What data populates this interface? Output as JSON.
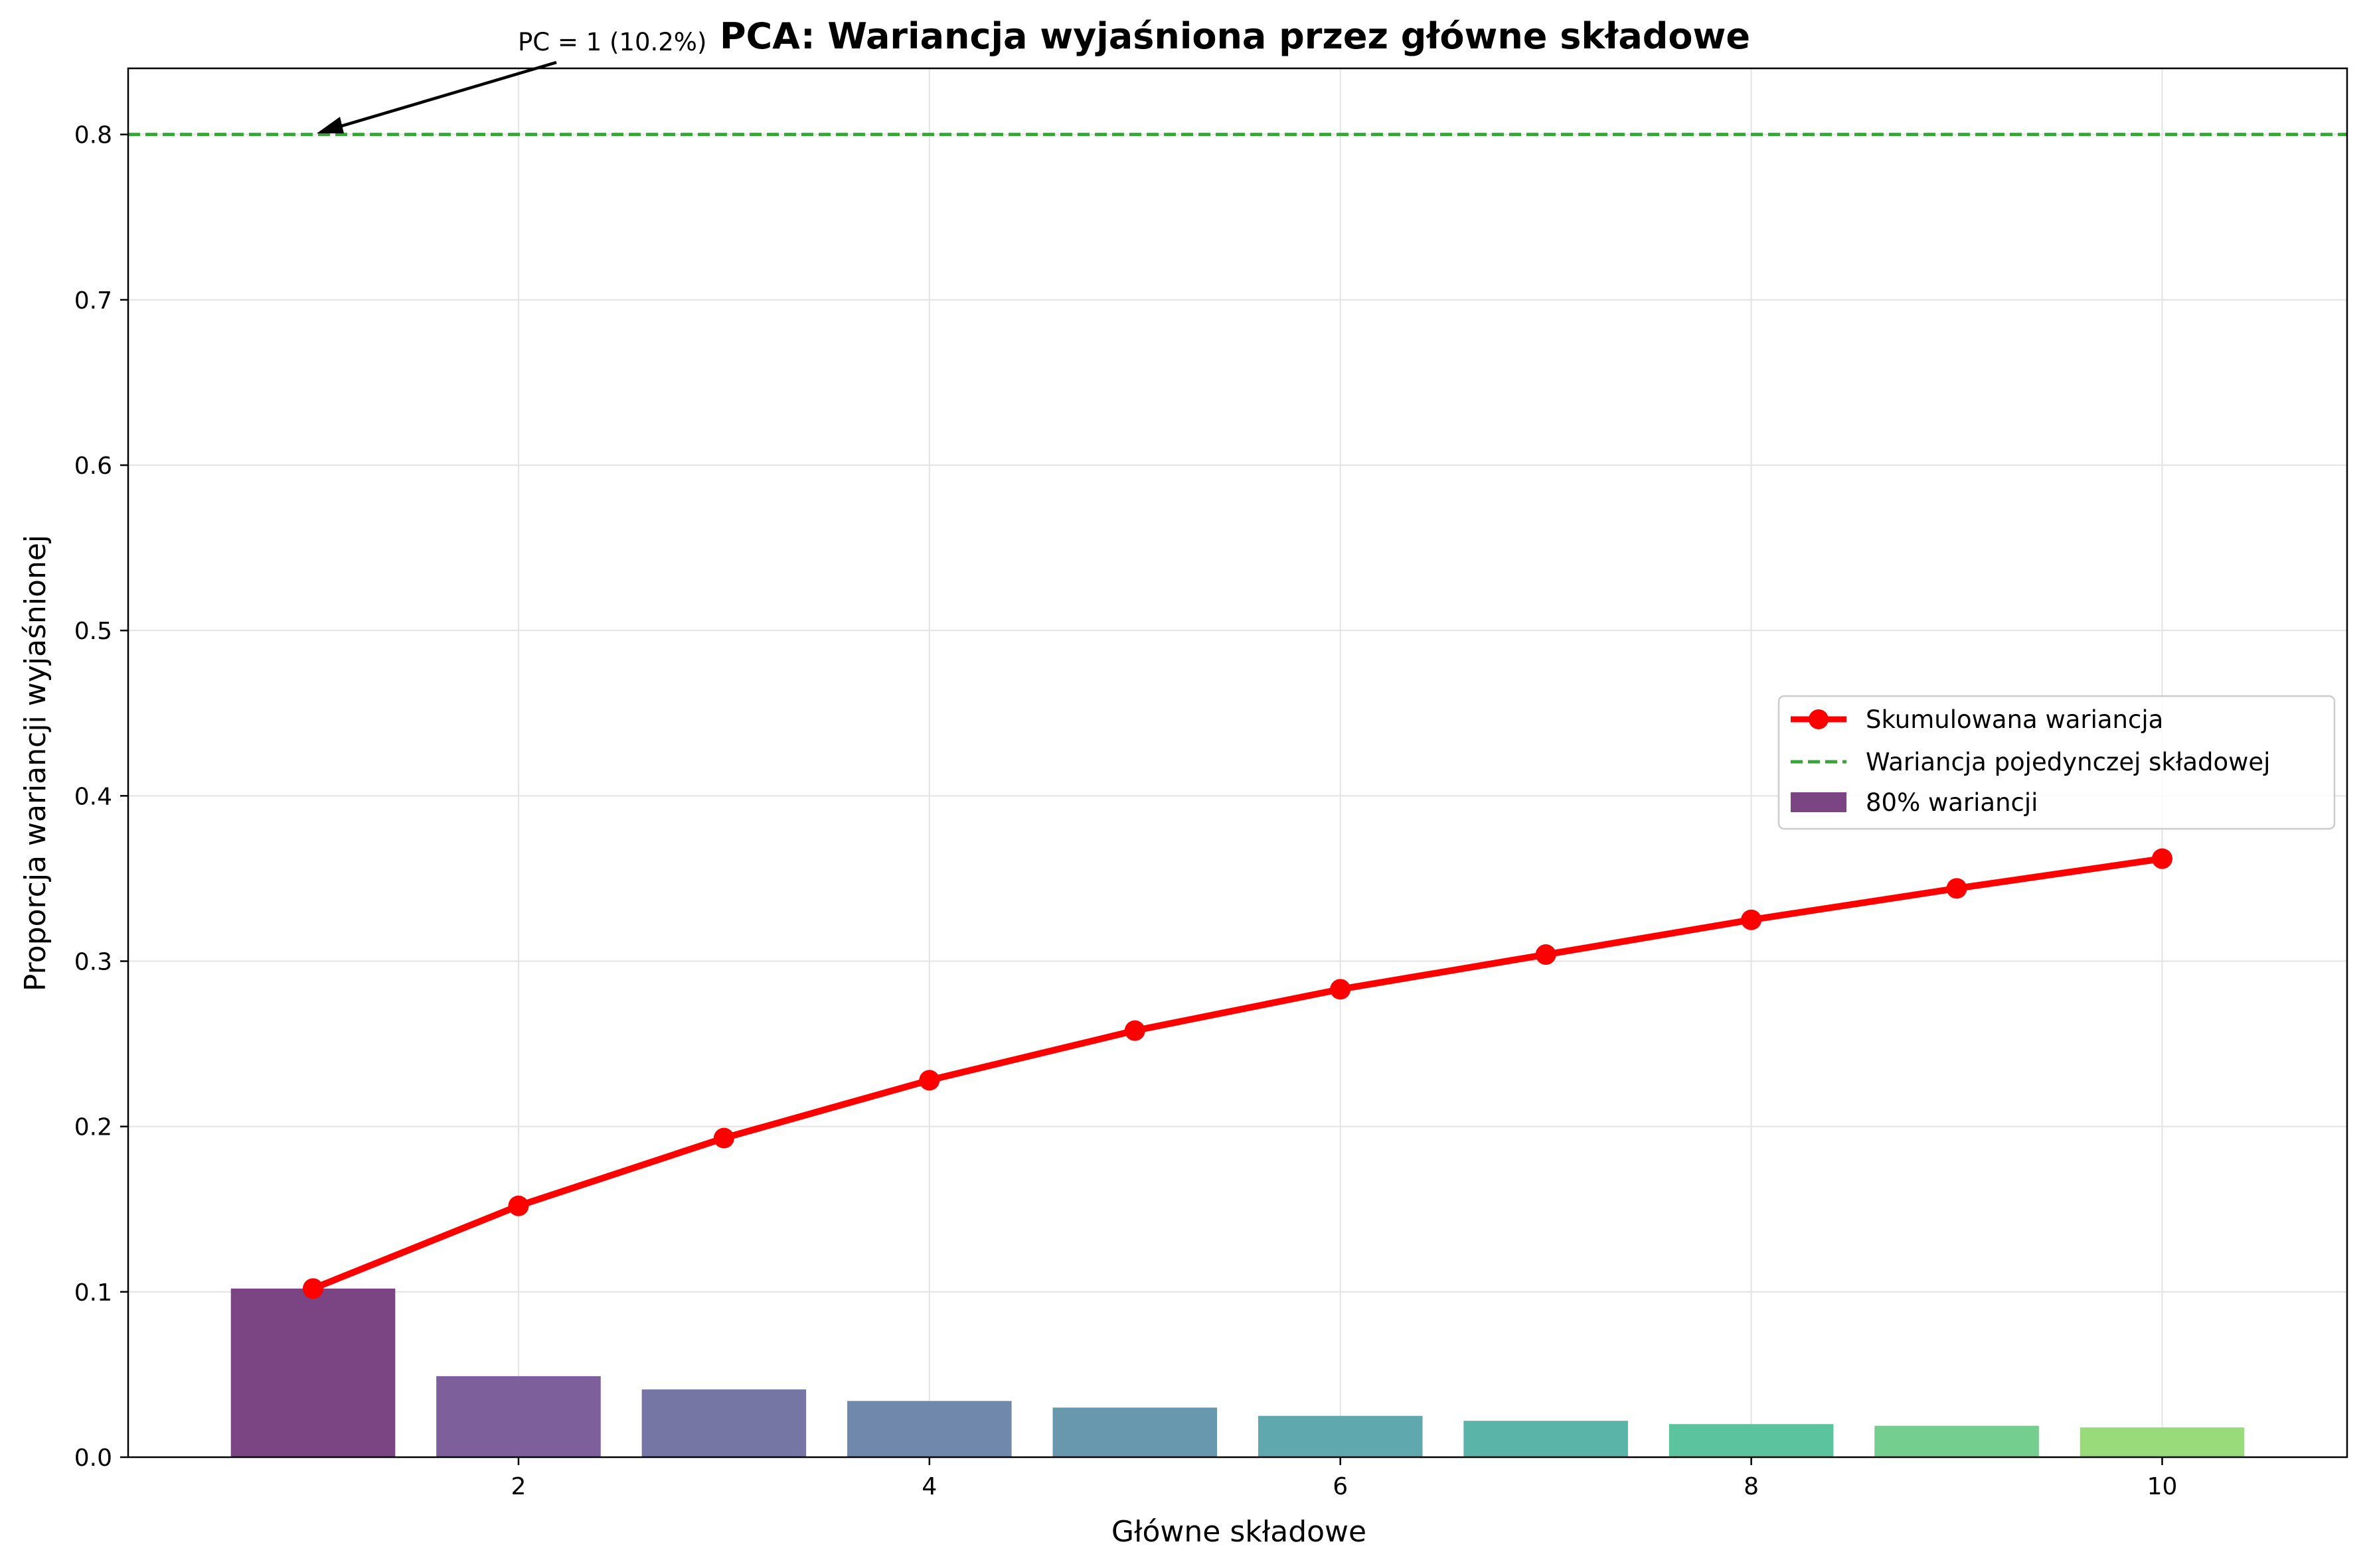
{
  "chart_data": {
    "type": "bar",
    "title": "PCA: Wariancja wyjaśniona przez główne składowe",
    "xlabel": "Główne składowe",
    "ylabel": "Proporcja wariancji wyjaśnionej",
    "xlim": [
      0.1,
      10.9
    ],
    "ylim": [
      0,
      0.84
    ],
    "xticks": [
      2,
      4,
      6,
      8,
      10
    ],
    "yticks": [
      0.0,
      0.1,
      0.2,
      0.3,
      0.4,
      0.5,
      0.6,
      0.7,
      0.8
    ],
    "grid": true,
    "legend_position": "center-right",
    "x": [
      1,
      2,
      3,
      4,
      5,
      6,
      7,
      8,
      9,
      10
    ],
    "bars": {
      "name": "80% wariancji",
      "values": [
        0.102,
        0.049,
        0.041,
        0.034,
        0.03,
        0.025,
        0.022,
        0.02,
        0.019,
        0.018
      ],
      "colors": [
        "#7b4482",
        "#7c5f9b",
        "#7676a5",
        "#6f88ab",
        "#6798ad",
        "#5fa8ae",
        "#5bb4a8",
        "#5cc39f",
        "#74cf8f",
        "#99da7b"
      ]
    },
    "series": [
      {
        "name": "Skumulowana wariancja",
        "type": "line",
        "color": "#ff0000",
        "marker": "circle",
        "values": [
          0.102,
          0.152,
          0.193,
          0.228,
          0.258,
          0.283,
          0.304,
          0.325,
          0.344,
          0.362
        ]
      }
    ],
    "reference_lines": [
      {
        "name": "Wariancja pojedynczej składowej",
        "axis": "y",
        "value": 0.8,
        "style": "dashed",
        "color": "#3aa33a"
      }
    ],
    "annotations": [
      {
        "text": "PC = 1 (10.2%)",
        "x": 1,
        "y": 0.8
      }
    ]
  }
}
